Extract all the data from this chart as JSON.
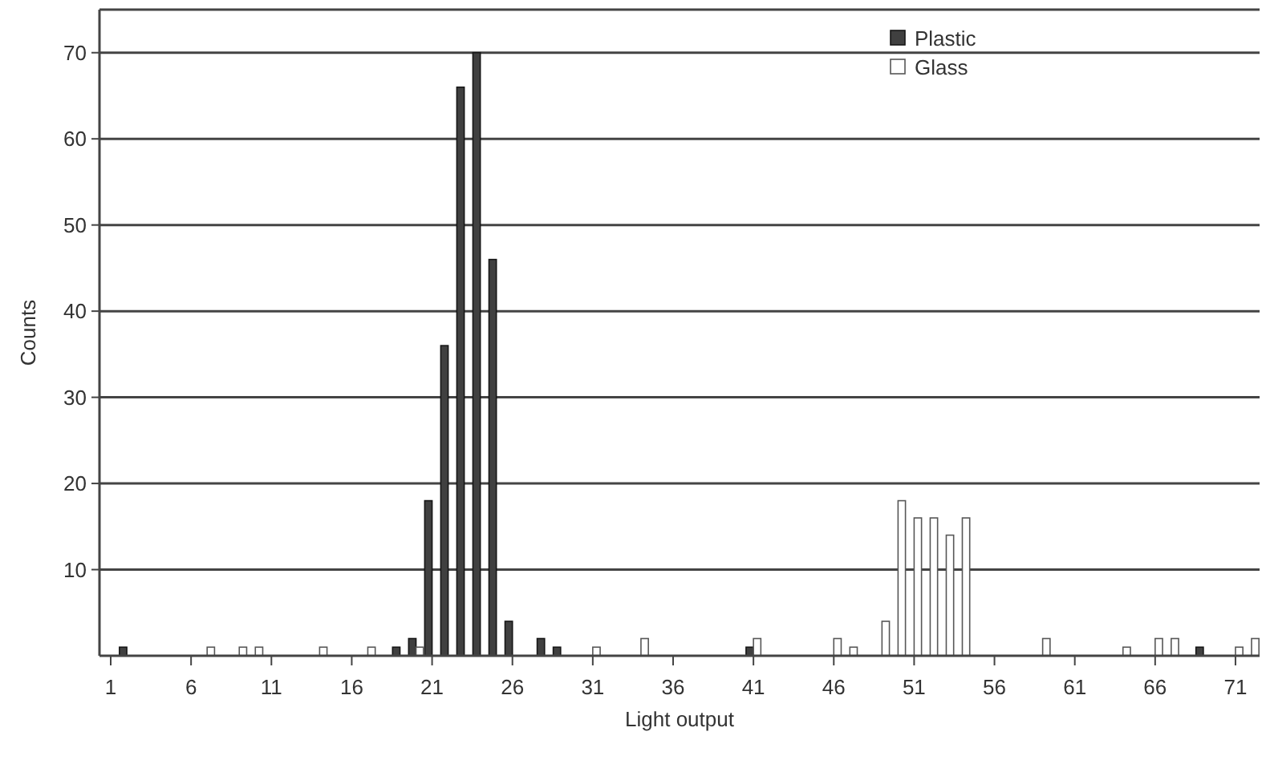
{
  "chart_data": {
    "type": "bar",
    "xlabel": "Light output",
    "ylabel": "Counts",
    "series": [
      {
        "name": "Plastic",
        "color": "#404040",
        "x": [
          2,
          19,
          20,
          21,
          22,
          23,
          24,
          25,
          26,
          28,
          29,
          41,
          69
        ],
        "values": [
          1,
          1,
          2,
          18,
          36,
          66,
          70,
          46,
          4,
          2,
          1,
          1,
          1
        ]
      },
      {
        "name": "Glass",
        "color": "#ffffff",
        "x": [
          7,
          9,
          10,
          14,
          17,
          20,
          31,
          34,
          41,
          46,
          47,
          49,
          50,
          51,
          52,
          53,
          54,
          59,
          64,
          66,
          67,
          71,
          72
        ],
        "values": [
          1,
          1,
          1,
          1,
          1,
          1,
          1,
          2,
          2,
          2,
          1,
          4,
          18,
          16,
          16,
          14,
          16,
          2,
          1,
          2,
          2,
          1,
          2
        ]
      }
    ],
    "xlim": [
      0.3,
      72.5
    ],
    "xticks": [
      1,
      6,
      11,
      16,
      21,
      26,
      31,
      36,
      41,
      46,
      51,
      56,
      61,
      66,
      71
    ],
    "ylim": [
      0,
      75
    ],
    "yticks": [
      10,
      20,
      30,
      40,
      50,
      60,
      70
    ],
    "grid": "y",
    "legend": "top right"
  }
}
